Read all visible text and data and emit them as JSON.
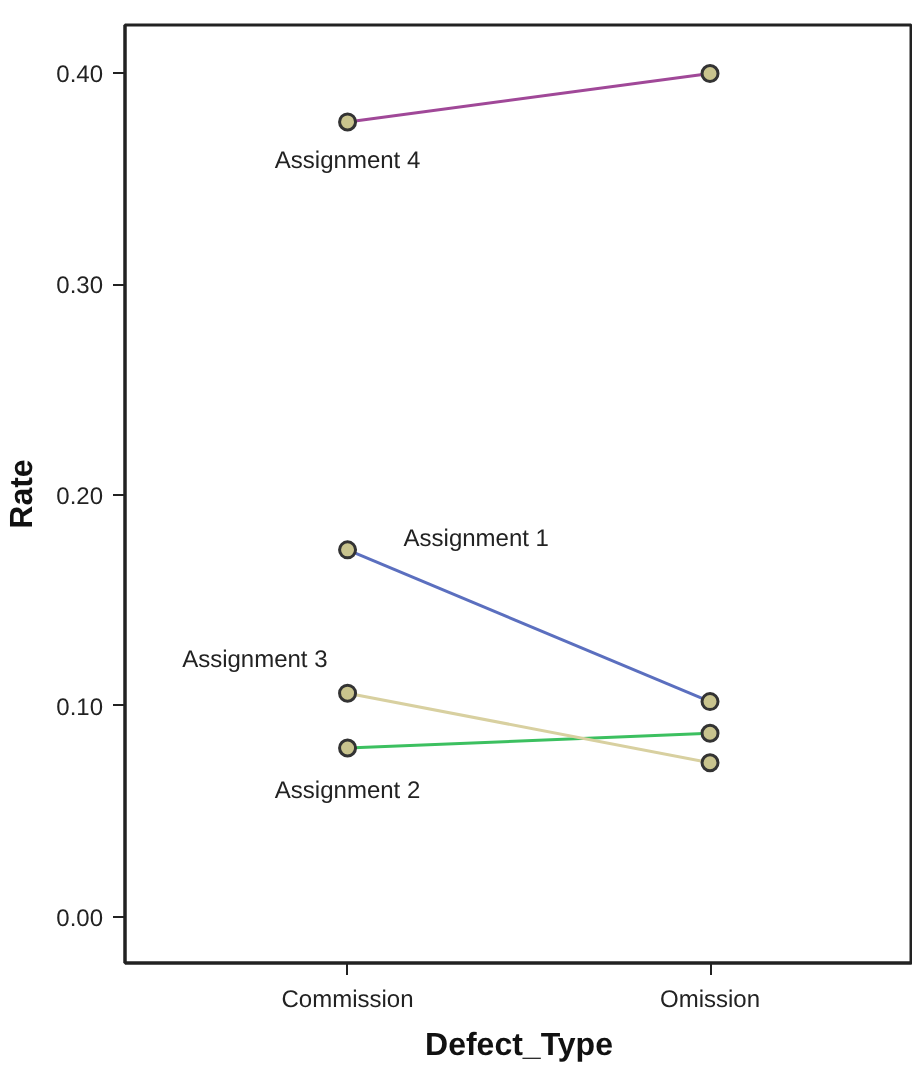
{
  "chart_data": {
    "type": "line",
    "xlabel": "Defect_Type",
    "ylabel": "Rate",
    "categories": [
      "Commission",
      "Omission"
    ],
    "series": [
      {
        "name": "Assignment 1",
        "color": "#5b6fbf",
        "values": [
          0.174,
          0.102
        ]
      },
      {
        "name": "Assignment 2",
        "color": "#3cc060",
        "values": [
          0.08,
          0.087
        ]
      },
      {
        "name": "Assignment 3",
        "color": "#d8d0a0",
        "values": [
          0.106,
          0.073
        ]
      },
      {
        "name": "Assignment 4",
        "color": "#a04898",
        "values": [
          0.377,
          0.4
        ]
      }
    ],
    "ylim": [
      -0.022,
      0.423
    ],
    "yticks": [
      {
        "value": 0,
        "label": "0.00"
      },
      {
        "value": 0.1,
        "label": "0.10"
      },
      {
        "value": 0.2,
        "label": "0.20"
      },
      {
        "value": 0.3,
        "label": "0.30"
      },
      {
        "value": 0.4,
        "label": "0.40"
      }
    ],
    "marker": "circle",
    "grid": false
  }
}
